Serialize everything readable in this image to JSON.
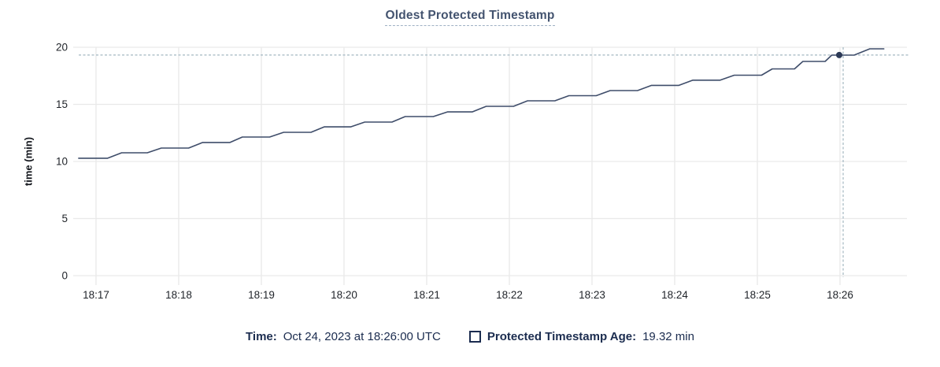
{
  "chart": {
    "title": "Oldest Protected Timestamp",
    "y_axis_label": "time (min)"
  },
  "legend": {
    "time_label": "Time:",
    "time_value": "Oct 24, 2023 at 18:26:00 UTC",
    "series_label": "Protected Timestamp Age:",
    "series_value": "19.32 min"
  },
  "colors": {
    "title": "#43536f",
    "title_underline": "#9fb0c4",
    "series_line": "#3f4d6a",
    "hover_dot": "#2c3a57",
    "crosshair": "#a3b7c2",
    "gridline": "#e9e9e9",
    "axis_text": "#1f2329",
    "legend_text": "#1b2c4f"
  },
  "chart_data": {
    "type": "line",
    "title": "Oldest Protected Timestamp",
    "xlabel": "",
    "ylabel": "time (min)",
    "ylim": [
      0,
      20
    ],
    "y_ticks": [
      0,
      5,
      10,
      15,
      20
    ],
    "x_tick_labels": [
      "18:17",
      "18:18",
      "18:19",
      "18:20",
      "18:21",
      "18:22",
      "18:23",
      "18:24",
      "18:25",
      "18:26"
    ],
    "x_unit": "minutes after 18:00 UTC, Oct 24 2023",
    "grid": true,
    "legend_position": "bottom",
    "series": [
      {
        "name": "Protected Timestamp Age",
        "points": [
          [
            16.79,
            10.28
          ],
          [
            17.14,
            10.28
          ],
          [
            17.31,
            10.76
          ],
          [
            17.62,
            10.76
          ],
          [
            17.79,
            11.17
          ],
          [
            18.12,
            11.17
          ],
          [
            18.29,
            11.66
          ],
          [
            18.62,
            11.66
          ],
          [
            18.77,
            12.14
          ],
          [
            19.1,
            12.14
          ],
          [
            19.27,
            12.55
          ],
          [
            19.6,
            12.55
          ],
          [
            19.76,
            13.03
          ],
          [
            20.08,
            13.03
          ],
          [
            20.25,
            13.45
          ],
          [
            20.58,
            13.45
          ],
          [
            20.74,
            13.93
          ],
          [
            21.08,
            13.93
          ],
          [
            21.25,
            14.34
          ],
          [
            21.55,
            14.34
          ],
          [
            21.72,
            14.83
          ],
          [
            22.05,
            14.83
          ],
          [
            22.22,
            15.31
          ],
          [
            22.55,
            15.31
          ],
          [
            22.72,
            15.76
          ],
          [
            23.05,
            15.76
          ],
          [
            23.22,
            16.21
          ],
          [
            23.55,
            16.21
          ],
          [
            23.72,
            16.66
          ],
          [
            24.05,
            16.66
          ],
          [
            24.22,
            17.12
          ],
          [
            24.55,
            17.12
          ],
          [
            24.72,
            17.55
          ],
          [
            25.05,
            17.55
          ],
          [
            25.18,
            18.1
          ],
          [
            25.45,
            18.1
          ],
          [
            25.55,
            18.76
          ],
          [
            25.82,
            18.76
          ],
          [
            25.9,
            19.31
          ],
          [
            26.17,
            19.31
          ],
          [
            26.36,
            19.86
          ],
          [
            26.53,
            19.86
          ]
        ]
      }
    ],
    "hover": {
      "t": 26.0,
      "time": "18:26:00",
      "value_min": 19.32
    }
  }
}
